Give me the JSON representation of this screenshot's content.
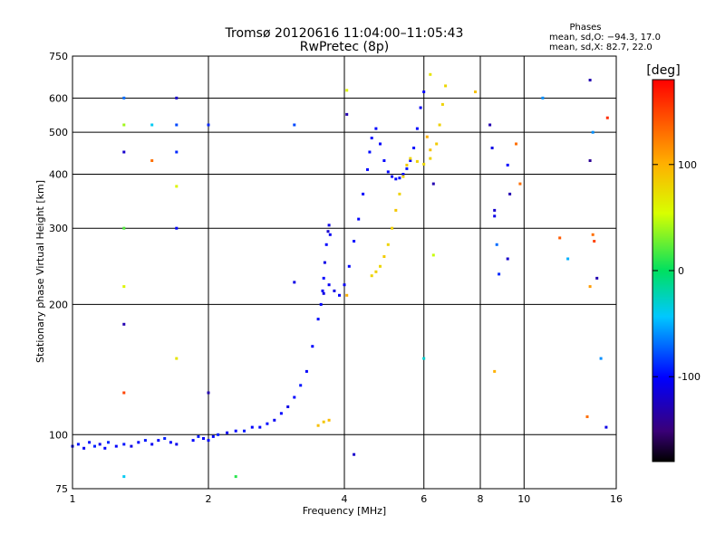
{
  "chart_data": {
    "type": "scatter",
    "title": "Tromsø 20120616 11:04:00–11:05:43",
    "subtitle": "RwPretec (8p)",
    "xlabel": "Frequency [MHz]",
    "ylabel": "Stationary phase Virtual Height [km]",
    "x_scale": "log",
    "y_scale": "log",
    "xlim": [
      1,
      16
    ],
    "ylim": [
      75,
      750
    ],
    "x_ticks": [
      1,
      2,
      4,
      6,
      8,
      10,
      16
    ],
    "y_ticks": [
      75,
      100,
      200,
      300,
      400,
      500,
      600,
      750
    ],
    "grid": true,
    "phases": {
      "title": "Phases",
      "line1": "mean, sd,O: −94.3, 17.0",
      "line2": "mean, sd,X:  82.7, 22.0"
    },
    "colorbar": {
      "label": "[deg]",
      "min": -180,
      "max": 180,
      "ticks": [
        -100,
        0,
        100
      ]
    },
    "series": [
      {
        "points": [
          [
            1.0,
            94,
            -100
          ],
          [
            1.03,
            95,
            -95
          ],
          [
            1.06,
            93,
            -105
          ],
          [
            1.09,
            96,
            -98
          ],
          [
            1.12,
            94,
            -92
          ],
          [
            1.15,
            95,
            -108
          ],
          [
            1.18,
            93,
            -100
          ],
          [
            1.2,
            96,
            -90
          ],
          [
            1.25,
            94,
            -102
          ],
          [
            1.3,
            95,
            -96
          ],
          [
            1.35,
            94,
            -110
          ],
          [
            1.4,
            96,
            -100
          ],
          [
            1.45,
            97,
            -95
          ],
          [
            1.5,
            95,
            -105
          ],
          [
            1.55,
            97,
            -100
          ],
          [
            1.6,
            98,
            -92
          ],
          [
            1.65,
            96,
            -100
          ],
          [
            1.7,
            95,
            -108
          ],
          [
            1.85,
            97,
            -100
          ],
          [
            1.9,
            99,
            -95
          ],
          [
            1.95,
            98,
            -102
          ],
          [
            2.0,
            97,
            -98
          ],
          [
            2.05,
            99,
            -100
          ],
          [
            2.1,
            100,
            -92
          ],
          [
            2.2,
            101,
            -105
          ],
          [
            2.3,
            102,
            -100
          ],
          [
            2.4,
            102,
            -95
          ],
          [
            2.5,
            104,
            -102
          ],
          [
            2.6,
            104,
            -100
          ],
          [
            2.7,
            106,
            -98
          ],
          [
            2.8,
            108,
            -105
          ],
          [
            2.9,
            112,
            -100
          ],
          [
            3.0,
            116,
            -110
          ],
          [
            3.1,
            122,
            -100
          ],
          [
            3.2,
            130,
            -95
          ],
          [
            3.3,
            140,
            -102
          ],
          [
            3.4,
            160,
            -100
          ],
          [
            3.5,
            185,
            -98
          ],
          [
            3.55,
            200,
            -100
          ],
          [
            3.58,
            215,
            -105
          ],
          [
            3.6,
            230,
            -100
          ],
          [
            3.62,
            250,
            -110
          ],
          [
            3.65,
            275,
            -100
          ],
          [
            3.68,
            295,
            -120
          ],
          [
            3.7,
            305,
            -110
          ],
          [
            3.72,
            290,
            -105
          ],
          [
            3.6,
            212,
            -110
          ],
          [
            3.7,
            222,
            -105
          ],
          [
            3.8,
            215,
            -110
          ],
          [
            3.9,
            210,
            -100
          ],
          [
            4.0,
            222,
            -105
          ],
          [
            4.1,
            245,
            -100
          ],
          [
            4.2,
            280,
            -98
          ],
          [
            4.3,
            315,
            -100
          ],
          [
            4.4,
            360,
            -102
          ],
          [
            4.5,
            410,
            -100
          ],
          [
            4.55,
            450,
            -98
          ],
          [
            4.6,
            485,
            -100
          ],
          [
            4.7,
            510,
            -100
          ],
          [
            4.8,
            470,
            -102
          ],
          [
            4.9,
            430,
            -100
          ],
          [
            5.0,
            405,
            -100
          ],
          [
            5.1,
            395,
            -105
          ],
          [
            5.2,
            390,
            -100
          ],
          [
            5.3,
            392,
            -98
          ],
          [
            5.4,
            400,
            -100
          ],
          [
            5.5,
            412,
            -95
          ],
          [
            5.6,
            430,
            -100
          ],
          [
            5.7,
            460,
            -98
          ],
          [
            5.8,
            510,
            -100
          ],
          [
            5.9,
            570,
            -105
          ],
          [
            6.0,
            620,
            -100
          ]
        ]
      },
      {
        "points": [
          [
            3.5,
            105,
            92
          ],
          [
            3.6,
            107,
            88
          ],
          [
            3.7,
            108,
            95
          ],
          [
            4.6,
            233,
            80
          ],
          [
            4.7,
            238,
            82
          ],
          [
            4.8,
            245,
            78
          ],
          [
            4.9,
            258,
            85
          ],
          [
            5.0,
            275,
            80
          ],
          [
            5.1,
            300,
            82
          ],
          [
            5.2,
            330,
            88
          ],
          [
            5.3,
            360,
            80
          ],
          [
            5.4,
            395,
            82
          ],
          [
            5.5,
            420,
            85
          ],
          [
            5.6,
            435,
            80
          ],
          [
            5.8,
            428,
            82
          ],
          [
            6.0,
            422,
            78
          ],
          [
            6.2,
            435,
            80
          ],
          [
            6.4,
            470,
            85
          ],
          [
            6.5,
            520,
            82
          ],
          [
            6.6,
            580,
            80
          ],
          [
            6.7,
            640,
            78
          ],
          [
            6.1,
            488,
            100
          ],
          [
            6.2,
            455,
            90
          ]
        ]
      },
      {
        "points": [
          [
            1.3,
            600,
            -70
          ],
          [
            1.3,
            520,
            40
          ],
          [
            1.3,
            450,
            -120
          ],
          [
            1.3,
            300,
            20
          ],
          [
            1.3,
            220,
            60
          ],
          [
            1.3,
            180,
            -130
          ],
          [
            1.3,
            125,
            150
          ],
          [
            1.3,
            80,
            -40
          ],
          [
            1.5,
            520,
            -40
          ],
          [
            1.5,
            430,
            130
          ],
          [
            1.7,
            600,
            -120
          ],
          [
            1.7,
            520,
            -80
          ],
          [
            1.7,
            450,
            -90
          ],
          [
            1.7,
            375,
            60
          ],
          [
            1.7,
            300,
            -100
          ],
          [
            1.7,
            150,
            70
          ],
          [
            2.0,
            125,
            -130
          ],
          [
            2.0,
            520,
            -90
          ],
          [
            2.3,
            80,
            10
          ],
          [
            3.1,
            520,
            -80
          ],
          [
            3.1,
            225,
            -110
          ],
          [
            4.05,
            625,
            60
          ],
          [
            4.05,
            550,
            -130
          ],
          [
            4.05,
            210,
            100
          ],
          [
            4.2,
            90,
            -120
          ],
          [
            6.0,
            150,
            -30
          ],
          [
            6.3,
            260,
            50
          ],
          [
            6.3,
            380,
            -130
          ],
          [
            6.2,
            680,
            70
          ],
          [
            7.8,
            620,
            90
          ],
          [
            8.4,
            520,
            -130
          ],
          [
            8.5,
            460,
            -110
          ],
          [
            8.6,
            330,
            -120
          ],
          [
            8.6,
            320,
            -110
          ],
          [
            8.7,
            275,
            -70
          ],
          [
            8.8,
            235,
            -90
          ],
          [
            8.6,
            140,
            100
          ],
          [
            9.2,
            420,
            -100
          ],
          [
            9.3,
            360,
            -130
          ],
          [
            9.6,
            470,
            130
          ],
          [
            9.8,
            380,
            130
          ],
          [
            9.2,
            255,
            -120
          ],
          [
            11.0,
            600,
            -60
          ],
          [
            12.0,
            285,
            140
          ],
          [
            12.5,
            255,
            -50
          ],
          [
            13.8,
            110,
            130
          ],
          [
            14.0,
            660,
            -130
          ],
          [
            14.2,
            500,
            -60
          ],
          [
            14.0,
            430,
            -140
          ],
          [
            14.2,
            290,
            130
          ],
          [
            14.3,
            280,
            150
          ],
          [
            14.5,
            230,
            -130
          ],
          [
            14.0,
            220,
            110
          ],
          [
            14.8,
            150,
            -60
          ],
          [
            15.3,
            540,
            160
          ],
          [
            15.2,
            104,
            -110
          ]
        ]
      }
    ]
  }
}
